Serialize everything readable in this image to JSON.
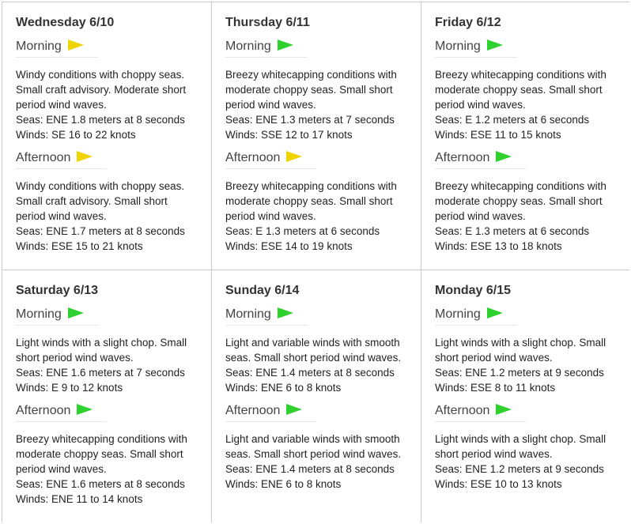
{
  "days": [
    {
      "title": "Wednesday 6/10",
      "morning": {
        "label": "Morning",
        "flag_color": "yellow",
        "summary": "Windy conditions with choppy seas. Small craft advisory. Moderate short period wind waves.",
        "seas": "Seas: ENE 1.8 meters at 8 seconds",
        "winds": "Winds: SE 16 to 22 knots"
      },
      "afternoon": {
        "label": "Afternoon",
        "flag_color": "yellow",
        "summary": "Windy conditions with choppy seas. Small craft advisory. Small short period wind waves.",
        "seas": "Seas: ENE 1.7 meters at 8 seconds",
        "winds": "Winds: ESE 15 to 21 knots"
      }
    },
    {
      "title": "Thursday 6/11",
      "morning": {
        "label": "Morning",
        "flag_color": "green",
        "summary": "Breezy whitecapping conditions with moderate choppy seas. Small short period wind waves.",
        "seas": "Seas: ENE 1.3 meters at 7 seconds",
        "winds": "Winds: SSE 12 to 17 knots"
      },
      "afternoon": {
        "label": "Afternoon",
        "flag_color": "yellow",
        "summary": "Breezy whitecapping conditions with moderate choppy seas. Small short period wind waves.",
        "seas": "Seas: E 1.3 meters at 6 seconds",
        "winds": "Winds: ESE 14 to 19 knots"
      }
    },
    {
      "title": "Friday 6/12",
      "morning": {
        "label": "Morning",
        "flag_color": "green",
        "summary": "Breezy whitecapping conditions with moderate choppy seas. Small short period wind waves.",
        "seas": "Seas: E 1.2 meters at 6 seconds",
        "winds": "Winds: ESE 11 to 15 knots"
      },
      "afternoon": {
        "label": "Afternoon",
        "flag_color": "green",
        "summary": "Breezy whitecapping conditions with moderate choppy seas. Small short period wind waves.",
        "seas": "Seas: E 1.3 meters at 6 seconds",
        "winds": "Winds: ESE 13 to 18 knots"
      }
    },
    {
      "title": "Saturday 6/13",
      "morning": {
        "label": "Morning",
        "flag_color": "green",
        "summary": "Light winds with a slight chop. Small short period wind waves.",
        "seas": "Seas: ENE 1.6 meters at 7 seconds",
        "winds": "Winds: E 9 to 12 knots"
      },
      "afternoon": {
        "label": "Afternoon",
        "flag_color": "green",
        "summary": "Breezy whitecapping conditions with moderate choppy seas. Small short period wind waves.",
        "seas": "Seas: ENE 1.6 meters at 8 seconds",
        "winds": "Winds: ENE 11 to 14 knots"
      }
    },
    {
      "title": "Sunday 6/14",
      "morning": {
        "label": "Morning",
        "flag_color": "green",
        "summary": "Light and variable winds with smooth seas. Small short period wind waves.",
        "seas": "Seas: ENE 1.4 meters at 8 seconds",
        "winds": "Winds: ENE 6 to 8 knots"
      },
      "afternoon": {
        "label": "Afternoon",
        "flag_color": "green",
        "summary": "Light and variable winds with smooth seas. Small short period wind waves.",
        "seas": "Seas: ENE 1.4 meters at 8 seconds",
        "winds": "Winds: ENE 6 to 8 knots"
      }
    },
    {
      "title": "Monday 6/15",
      "morning": {
        "label": "Morning",
        "flag_color": "green",
        "summary": "Light winds with a slight chop. Small short period wind waves.",
        "seas": "Seas: ENE 1.2 meters at 9 seconds",
        "winds": "Winds: ESE 8 to 11 knots"
      },
      "afternoon": {
        "label": "Afternoon",
        "flag_color": "green",
        "summary": "Light winds with a slight chop. Small short period wind waves.",
        "seas": "Seas: ENE 1.2 meters at 9 seconds",
        "winds": "Winds: ESE 10 to 13 knots"
      }
    }
  ]
}
